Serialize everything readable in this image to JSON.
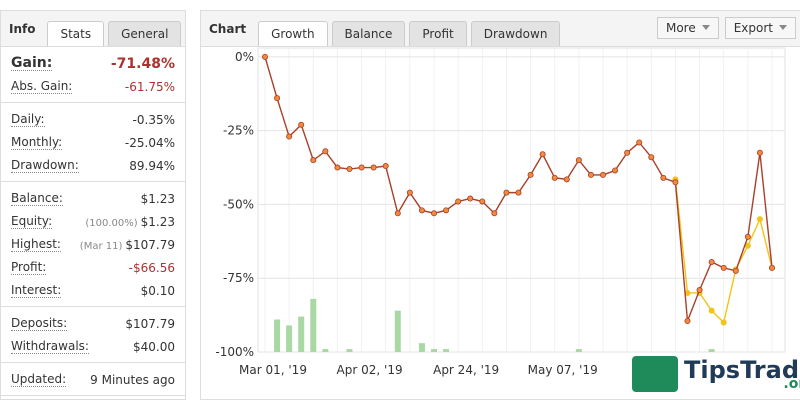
{
  "info_panel": {
    "title": "Info",
    "tabs": [
      "Stats",
      "General"
    ],
    "groups": [
      [
        {
          "label": "Gain:",
          "value": "-71.48%",
          "tone": "red",
          "strong": true
        },
        {
          "label": "Abs. Gain:",
          "value": "-61.75%",
          "tone": "red"
        }
      ],
      [
        {
          "label": "Daily:",
          "value": "-0.35%"
        },
        {
          "label": "Monthly:",
          "value": "-25.04%"
        },
        {
          "label": "Drawdown:",
          "value": "89.94%"
        }
      ],
      [
        {
          "label": "Balance:",
          "value": "$1.23"
        },
        {
          "label": "Equity:",
          "note": "(100.00%)",
          "value": "$1.23"
        },
        {
          "label": "Highest:",
          "note": "(Mar 11)",
          "value": "$107.79"
        },
        {
          "label": "Profit:",
          "value": "-$66.56",
          "tone": "red"
        },
        {
          "label": "Interest:",
          "value": "$0.10"
        }
      ],
      [
        {
          "label": "Deposits:",
          "value": "$107.79"
        },
        {
          "label": "Withdrawals:",
          "value": "$40.00"
        }
      ],
      [
        {
          "label": "Updated:",
          "value": "9 Minutes ago"
        }
      ]
    ]
  },
  "chart_panel": {
    "title": "Chart",
    "tabs": [
      "Growth",
      "Balance",
      "Profit",
      "Drawdown"
    ],
    "buttons": [
      "More",
      "Export"
    ]
  },
  "chart_data": {
    "type": "line",
    "categories": [
      "Mar 01, '19",
      null,
      null,
      null,
      null,
      null,
      null,
      null,
      "Apr 02, '19",
      null,
      null,
      null,
      null,
      null,
      null,
      null,
      "Apr 24, '19",
      null,
      null,
      null,
      null,
      null,
      null,
      null,
      "May 07, '19",
      null,
      null,
      null,
      null,
      null,
      null,
      null,
      null,
      null,
      null,
      null,
      null,
      null,
      null,
      null,
      null,
      null,
      null
    ],
    "series": [
      {
        "type": "bar",
        "color": "#a9d8a4",
        "values": [
          null,
          -89,
          -91,
          -88,
          -82,
          -99,
          null,
          -99,
          null,
          null,
          null,
          -86,
          null,
          -97,
          -99,
          -99,
          null,
          null,
          null,
          null,
          null,
          null,
          null,
          null,
          null,
          null,
          -99,
          null,
          null,
          null,
          null,
          null,
          null,
          null,
          null,
          null,
          null,
          -99,
          null,
          null,
          null,
          null,
          null
        ]
      },
      {
        "type": "line",
        "color": "#f2c318",
        "values": [
          null,
          null,
          null,
          null,
          null,
          null,
          null,
          null,
          null,
          null,
          null,
          null,
          null,
          null,
          null,
          null,
          null,
          null,
          null,
          null,
          null,
          null,
          null,
          null,
          null,
          null,
          null,
          null,
          null,
          null,
          null,
          null,
          null,
          null,
          -41.5,
          -80,
          -80,
          -86,
          -90,
          -72,
          -64,
          -55,
          -71.5
        ]
      },
      {
        "type": "line",
        "color": "#a8402a",
        "marker": "#f08a3c",
        "values": [
          0,
          -14,
          -27,
          -23,
          -35,
          -32,
          -37.5,
          -38,
          -37.5,
          -37.5,
          -37,
          -53,
          -46,
          -52,
          -53,
          -52,
          -49,
          -48,
          -49,
          -53,
          -46,
          -46,
          -40,
          -33,
          -41,
          -41.5,
          -35,
          -40,
          -40,
          -38.5,
          -32.5,
          -29,
          -34,
          -41,
          -42.5,
          -89.5,
          -79,
          -69.5,
          -71.5,
          -72.5,
          -61,
          -32.5,
          -71.5
        ]
      }
    ],
    "ylim": [
      -100,
      3
    ],
    "yticks": [
      {
        "value": 0,
        "label": "0%"
      },
      {
        "value": -25,
        "label": "-25%"
      },
      {
        "value": -50,
        "label": "-50%"
      },
      {
        "value": -75,
        "label": "-75%"
      },
      {
        "value": -100,
        "label": "-100%"
      }
    ],
    "grid": true
  },
  "watermark": {
    "brand": "TipsTrade",
    "suffix": ".org"
  }
}
